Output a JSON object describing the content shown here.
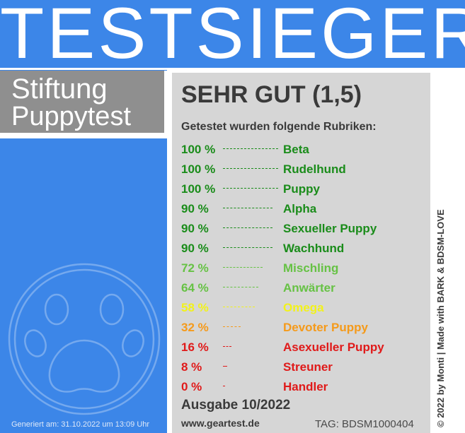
{
  "banner": {
    "title": "TESTSIEGER"
  },
  "brand": {
    "line1": "Stiftung",
    "line2": "Puppytest"
  },
  "result": {
    "grade": "SEHR GUT (1,5)",
    "subtitle": "Getestet wurden folgende Rubriken:",
    "rows": [
      {
        "percent": "100 %",
        "value": 100,
        "category": "Beta",
        "color": "#1a8c1a"
      },
      {
        "percent": "100 %",
        "value": 100,
        "category": "Rudelhund",
        "color": "#1a8c1a"
      },
      {
        "percent": "100 %",
        "value": 100,
        "category": "Puppy",
        "color": "#1a8c1a"
      },
      {
        "percent": "90 %",
        "value": 90,
        "category": "Alpha",
        "color": "#1a8c1a"
      },
      {
        "percent": "90 %",
        "value": 90,
        "category": "Sexueller Puppy",
        "color": "#1a8c1a"
      },
      {
        "percent": "90 %",
        "value": 90,
        "category": "Wachhund",
        "color": "#1a8c1a"
      },
      {
        "percent": "72 %",
        "value": 72,
        "category": "Mischling",
        "color": "#66c244"
      },
      {
        "percent": "64 %",
        "value": 64,
        "category": "Anwärter",
        "color": "#66c244"
      },
      {
        "percent": "58 %",
        "value": 58,
        "category": "Omega",
        "color": "#f2f21a"
      },
      {
        "percent": "32 %",
        "value": 32,
        "category": "Devoter Puppy",
        "color": "#f59a1a"
      },
      {
        "percent": "16 %",
        "value": 16,
        "category": "Asexueller Puppy",
        "color": "#e01a1a"
      },
      {
        "percent": "8 %",
        "value": 8,
        "category": "Streuner",
        "color": "#e01a1a"
      },
      {
        "percent": "0 %",
        "value": 0,
        "category": "Handler",
        "color": "#e01a1a"
      }
    ],
    "issue": "Ausgabe 10/2022",
    "website": "www.geartest.de",
    "tag": "TAG: BDSM1000404"
  },
  "generated": "Generiert am: 31.10.2022 um 13:09 Uhr",
  "copyright": "© 2022 by Monti | Made with BARK & BDSM-LOVE",
  "colors": {
    "blue": "#3c86e8",
    "grey_box": "#8f8f8f",
    "panel": "#d6d6d6",
    "text_dark": "#3a3a3a"
  },
  "icons": {
    "paw": "paw-icon"
  }
}
